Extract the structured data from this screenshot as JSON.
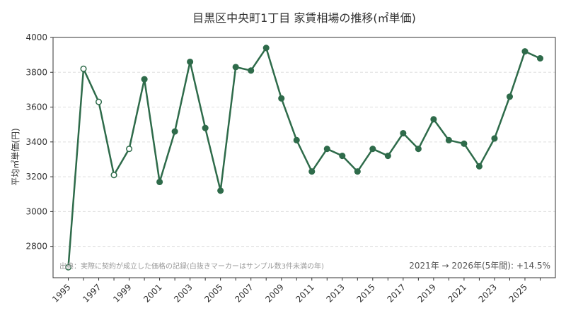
{
  "chart_data": {
    "type": "line",
    "title": "目黒区中央町1丁目 家賃相場の推移(㎡単価)",
    "xlabel": "",
    "ylabel": "平均㎡単価(円)",
    "x": [
      1995,
      1996,
      1997,
      1998,
      1999,
      2000,
      2001,
      2002,
      2003,
      2004,
      2005,
      2006,
      2007,
      2008,
      2009,
      2010,
      2011,
      2012,
      2013,
      2014,
      2015,
      2016,
      2017,
      2018,
      2019,
      2020,
      2021,
      2022,
      2023,
      2024,
      2025,
      2026
    ],
    "series": [
      {
        "values": [
          2680,
          3820,
          3630,
          3210,
          3360,
          3760,
          3170,
          3460,
          3860,
          3480,
          3120,
          3830,
          3810,
          3940,
          3650,
          3410,
          3230,
          3360,
          3320,
          3230,
          3360,
          3320,
          3450,
          3360,
          3530,
          3410,
          3390,
          3260,
          3420,
          3660,
          3920,
          3880
        ],
        "low_sample": [
          true,
          true,
          true,
          true,
          true,
          false,
          false,
          false,
          false,
          false,
          false,
          false,
          false,
          false,
          false,
          false,
          false,
          false,
          false,
          false,
          false,
          false,
          false,
          false,
          false,
          false,
          false,
          false,
          false,
          false,
          false,
          false
        ]
      }
    ],
    "x_ticks": [
      "1995",
      "1997",
      "1999",
      "2001",
      "2003",
      "2005",
      "2007",
      "2009",
      "2011",
      "2013",
      "2015",
      "2017",
      "2019",
      "2021",
      "2023",
      "2025"
    ],
    "y_ticks": [
      "2800",
      "3000",
      "3200",
      "3400",
      "3600",
      "3800",
      "4000"
    ],
    "ylim": [
      2620,
      4000
    ],
    "grid": "horizontal dashed",
    "note": "出典：実際に契約が成立した価格の記録(白抜きマーカーはサンプル数3件未満の年)",
    "summary": "2021年 → 2026年(5年間): +14.5%",
    "colors": {
      "line": "#2e6b4a",
      "marker_fill": "#2e6b4a",
      "hollow_fill": "#ffffff",
      "grid": "#dddddd",
      "axis": "#333333"
    }
  }
}
